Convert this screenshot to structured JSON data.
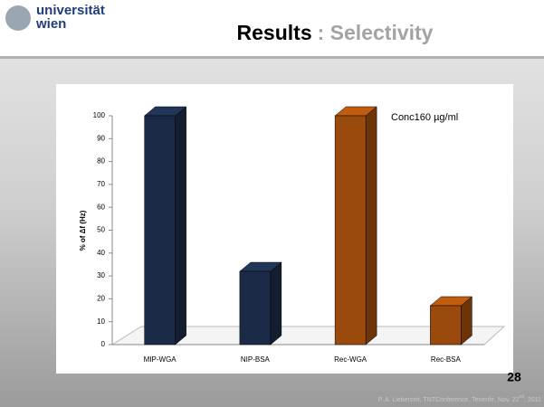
{
  "slide": {
    "logo_top": "universität",
    "logo_bottom": "wien",
    "title_main": "Results",
    "title_sub": ": Selectivity",
    "page_number": "28",
    "footer": {
      "text": "P. A. Lieberzeit, TNTConference, Tenerife, Nov. 22",
      "superscript": "nd",
      "end": ", 2011"
    }
  },
  "chart_data": {
    "type": "bar",
    "categories": [
      "MIP-WGA",
      "NIP-BSA",
      "Rec-WGA",
      "Rec-BSA"
    ],
    "values": [
      100,
      32,
      100,
      17
    ],
    "colors": [
      "#1b2b47",
      "#1b2b47",
      "#9a4a0c",
      "#9a4a0c"
    ],
    "ylabel": "% of Δf (Hz)",
    "annotation": "Conc160 µg/ml",
    "ylim": [
      0,
      100
    ],
    "yticks": [
      0,
      10,
      20,
      30,
      40,
      50,
      60,
      70,
      80,
      90,
      100
    ],
    "grid": false
  }
}
